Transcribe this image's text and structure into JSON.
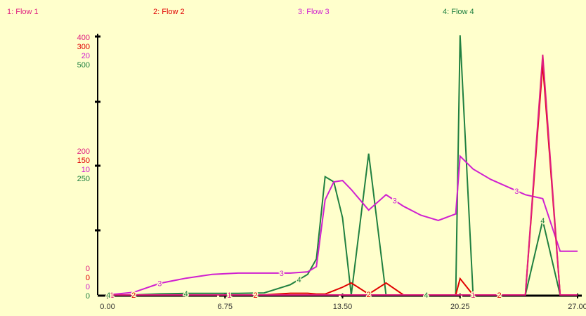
{
  "chart_data": {
    "type": "line",
    "title": "",
    "xlabel": "",
    "x_ticks": [
      "0.00",
      "6.75",
      "13.50",
      "20.25",
      "27.00"
    ],
    "xlim": [
      0,
      27
    ],
    "x": [
      0,
      1.5,
      3,
      4.5,
      6,
      7.5,
      9,
      10.5,
      11.5,
      12,
      12.5,
      13,
      13.5,
      14,
      15,
      16,
      17,
      18,
      19,
      20,
      20.25,
      21,
      22,
      23,
      24,
      25,
      26,
      27
    ],
    "y_tick_groups": [
      {
        "color": "#e02080",
        "labels": [
          "400",
          "200",
          "0"
        ]
      },
      {
        "color": "#e00000",
        "labels": [
          "300",
          "150",
          "0"
        ]
      },
      {
        "color": "#d020d0",
        "labels": [
          "20",
          "10",
          "0"
        ]
      },
      {
        "color": "#208040",
        "labels": [
          "500",
          "250",
          "0"
        ]
      }
    ],
    "series": [
      {
        "name": "1: Flow 1",
        "color": "#e02080",
        "ylim": [
          0,
          400
        ],
        "values": [
          0,
          0,
          0,
          0,
          0,
          0,
          0,
          0,
          0,
          0,
          0,
          0,
          0,
          0,
          0,
          0,
          0,
          0,
          0,
          0,
          0,
          0,
          0,
          0,
          0,
          374,
          0,
          0
        ],
        "marker_x": [
          0.25,
          7,
          21
        ]
      },
      {
        "name": "2: Flow 2",
        "color": "#e00000",
        "ylim": [
          0,
          300
        ],
        "values": [
          0,
          0,
          0,
          0,
          0,
          0,
          0,
          2,
          2,
          1,
          1,
          5,
          9,
          14,
          1,
          14,
          0,
          0,
          0,
          0,
          19,
          0,
          0,
          0,
          0,
          270,
          0,
          0
        ],
        "marker_x": [
          1.5,
          8.5,
          15,
          22.5
        ]
      },
      {
        "name": "3: Flow 3",
        "color": "#d020d0",
        "ylim": [
          0,
          20
        ],
        "values": [
          0,
          0.2,
          0.9,
          1.3,
          1.6,
          1.7,
          1.7,
          1.7,
          1.8,
          2.2,
          7.4,
          8.8,
          8.9,
          8.2,
          6.6,
          7.8,
          6.9,
          6.2,
          5.8,
          6.3,
          10.8,
          9.8,
          9.0,
          8.4,
          7.8,
          7.5,
          3.4,
          3.4
        ],
        "marker_x": [
          3,
          10,
          16.5,
          23.5
        ]
      },
      {
        "name": "4: Flow 4",
        "color": "#208040",
        "ylim": [
          0,
          500
        ],
        "values": [
          0,
          0,
          2,
          3,
          3,
          3,
          4,
          20,
          40,
          70,
          230,
          220,
          150,
          0,
          275,
          0,
          0,
          0,
          0,
          0,
          505,
          0,
          0,
          0,
          0,
          145,
          0,
          0
        ],
        "marker_x": [
          0.05,
          4.5,
          11,
          18.3,
          25
        ]
      }
    ],
    "legend": "top",
    "grid": false
  }
}
